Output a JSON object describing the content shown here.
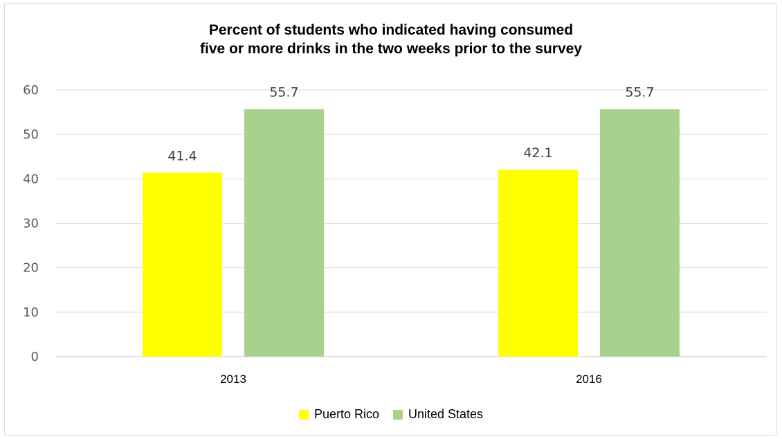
{
  "chart_data": {
    "type": "bar",
    "title_lines": [
      "Percent of students who indicated having consumed",
      "five or more drinks in the two weeks prior to the survey"
    ],
    "categories": [
      "2013",
      "2016"
    ],
    "series": [
      {
        "name": "Puerto Rico",
        "values": [
          41.4,
          42.1
        ],
        "color": "#ffff00"
      },
      {
        "name": "United States",
        "values": [
          55.7,
          55.7
        ],
        "color": "#a9d18e"
      }
    ],
    "value_labels": [
      [
        "41.4",
        "42.1"
      ],
      [
        "55.7",
        "55.7"
      ]
    ],
    "ylim": [
      0,
      60
    ],
    "yticks": [
      "0",
      "10",
      "20",
      "30",
      "40",
      "50",
      "60"
    ],
    "grid": true,
    "legend_position": "bottom"
  }
}
